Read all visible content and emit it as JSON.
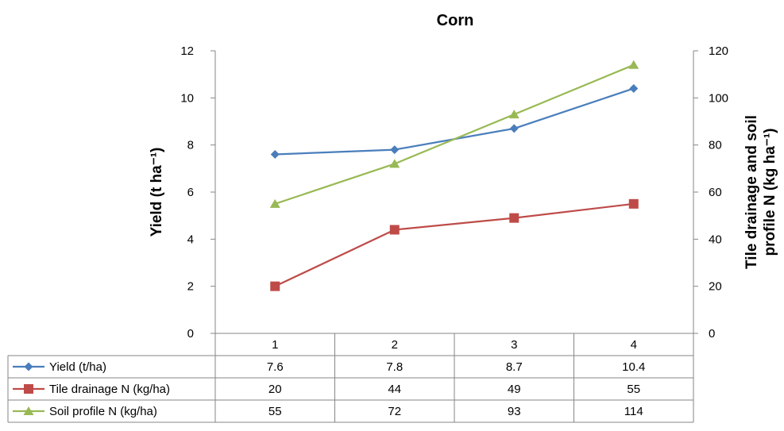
{
  "chart_data": {
    "type": "line",
    "title": "Corn",
    "ylabel": "Yield (t ha⁻¹)",
    "y2label_lines": [
      "Tile drainage and soil",
      "profile N (kg ha⁻¹)"
    ],
    "categories": [
      "1",
      "2",
      "3",
      "4"
    ],
    "ylim": [
      0,
      12
    ],
    "y_ticks": [
      "0",
      "2",
      "4",
      "6",
      "8",
      "10",
      "12"
    ],
    "y2lim": [
      0,
      120
    ],
    "y2_ticks": [
      "0",
      "20",
      "40",
      "60",
      "80",
      "100",
      "120"
    ],
    "grid": false,
    "legend": "data-table",
    "series": [
      {
        "name": "Yield (t/ha)",
        "axis": "left",
        "marker": "diamond",
        "color": "#4a7ebb",
        "values": [
          7.6,
          7.8,
          8.7,
          10.4
        ],
        "labels": [
          "7.6",
          "7.8",
          "8.7",
          "10.4"
        ]
      },
      {
        "name": "Tile drainage N (kg/ha)",
        "axis": "right",
        "marker": "square",
        "color": "#be4b48",
        "values": [
          20,
          44,
          49,
          55
        ],
        "labels": [
          "20",
          "44",
          "49",
          "55"
        ]
      },
      {
        "name": "Soil profile N (kg/ha)",
        "axis": "right",
        "marker": "triangle",
        "color": "#98b954",
        "values": [
          55,
          72,
          93,
          114
        ],
        "labels": [
          "55",
          "72",
          "93",
          "114"
        ]
      }
    ]
  }
}
